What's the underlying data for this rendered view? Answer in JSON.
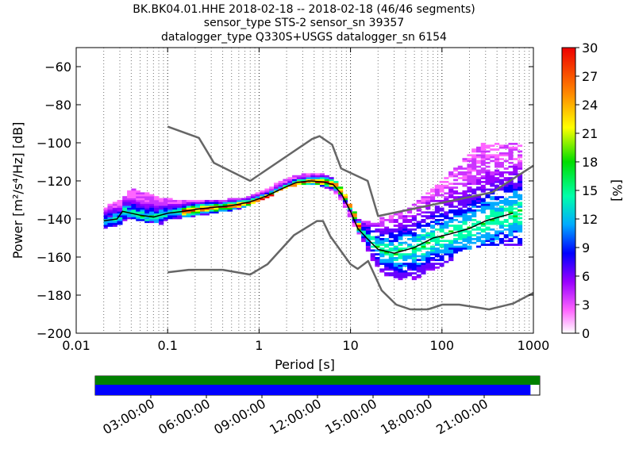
{
  "title": {
    "line1": "BK.BK04.01.HHE   2018-02-18 -- 2018-02-18  (46/46 segments)",
    "line2": "sensor_type STS-2 sensor_sn 39357",
    "line3": "datalogger_type Q330S+USGS datalogger_sn 6154"
  },
  "chart_data": {
    "type": "heatmap",
    "xlabel": "Period [s]",
    "ylabel": "Power [m²/s⁴/Hz] [dB]",
    "x_scale": "log",
    "xlim": [
      0.01,
      1000
    ],
    "ylim": [
      -200,
      -50
    ],
    "x_ticks": [
      0.01,
      0.1,
      1,
      10,
      100,
      1000
    ],
    "x_tick_labels": [
      "0.01",
      "0.1",
      "1",
      "10",
      "100",
      "1000"
    ],
    "y_ticks": [
      -200,
      -180,
      -160,
      -140,
      -120,
      -100,
      -80,
      -60
    ],
    "y_tick_labels": [
      "−200",
      "−180",
      "−160",
      "−140",
      "−120",
      "−100",
      "−80",
      "−60"
    ],
    "grid": "dotted vertical",
    "colorbar": {
      "label": "[%]",
      "range": [
        0,
        30
      ],
      "ticks": [
        0,
        3,
        6,
        9,
        12,
        15,
        18,
        21,
        24,
        27,
        30
      ],
      "tick_labels": [
        "0",
        "3",
        "6",
        "9",
        "12",
        "15",
        "18",
        "21",
        "24",
        "27",
        "30"
      ]
    },
    "noise_models": {
      "new_high_noise_model": {
        "color": "#666666",
        "points": [
          [
            0.1,
            -91.5
          ],
          [
            0.22,
            -97.4
          ],
          [
            0.32,
            -110.5
          ],
          [
            0.8,
            -120
          ],
          [
            3.8,
            -98
          ],
          [
            4.6,
            -96.5
          ],
          [
            6.3,
            -101
          ],
          [
            7.9,
            -113.5
          ],
          [
            15.4,
            -120
          ],
          [
            20,
            -138.5
          ],
          [
            354.8,
            -126
          ],
          [
            1000,
            -112
          ]
        ]
      },
      "new_low_noise_model": {
        "color": "#666666",
        "points": [
          [
            0.1,
            -168
          ],
          [
            0.17,
            -166.7
          ],
          [
            0.4,
            -166.7
          ],
          [
            0.8,
            -169.2
          ],
          [
            1.24,
            -163.7
          ],
          [
            2.4,
            -148.6
          ],
          [
            4.3,
            -141.1
          ],
          [
            5,
            -141.1
          ],
          [
            6,
            -149
          ],
          [
            10,
            -163.8
          ],
          [
            12,
            -166.2
          ],
          [
            15.6,
            -162.1
          ],
          [
            21.9,
            -177.5
          ],
          [
            31.6,
            -185
          ],
          [
            45,
            -187.5
          ],
          [
            70,
            -187.5
          ],
          [
            101,
            -185
          ],
          [
            154,
            -185
          ],
          [
            328,
            -187.5
          ],
          [
            600,
            -184.4
          ],
          [
            1000,
            -178.8
          ]
        ]
      },
      "mode": {
        "color": "#000000",
        "points": [
          [
            0.02,
            -141
          ],
          [
            0.028,
            -140
          ],
          [
            0.032,
            -136
          ],
          [
            0.04,
            -137
          ],
          [
            0.05,
            -138
          ],
          [
            0.07,
            -139
          ],
          [
            0.1,
            -137
          ],
          [
            0.15,
            -136
          ],
          [
            0.2,
            -135
          ],
          [
            0.3,
            -134
          ],
          [
            0.5,
            -133
          ],
          [
            0.8,
            -131
          ],
          [
            1.2,
            -128
          ],
          [
            1.8,
            -124
          ],
          [
            2.5,
            -121
          ],
          [
            3.5,
            -120
          ],
          [
            5,
            -120.5
          ],
          [
            6.5,
            -122
          ],
          [
            8,
            -127
          ],
          [
            10,
            -136
          ],
          [
            12,
            -145
          ],
          [
            15,
            -150
          ],
          [
            20,
            -156
          ],
          [
            30,
            -158
          ],
          [
            50,
            -155
          ],
          [
            80,
            -150
          ],
          [
            120,
            -148
          ],
          [
            200,
            -145
          ],
          [
            300,
            -141
          ],
          [
            500,
            -138
          ],
          [
            600,
            -137
          ]
        ]
      }
    },
    "histogram": {
      "period_bins": [
        0.02,
        0.022,
        0.025,
        0.028,
        0.032,
        0.036,
        0.04,
        0.045,
        0.05,
        0.056,
        0.063,
        0.071,
        0.08,
        0.09,
        0.1,
        0.113,
        0.127,
        0.143,
        0.16,
        0.18,
        0.2,
        0.226,
        0.254,
        0.285,
        0.32,
        0.36,
        0.4,
        0.45,
        0.51,
        0.57,
        0.64,
        0.72,
        0.81,
        0.91,
        1.02,
        1.15,
        1.29,
        1.45,
        1.62,
        1.82,
        2.05,
        2.3,
        2.58,
        2.9,
        3.26,
        3.66,
        4.11,
        4.62,
        5.18,
        5.82,
        6.54,
        7.34,
        8.24,
        9.25,
        10.4,
        11.7,
        13.1,
        14.7,
        16.5,
        18.5,
        20.8,
        23.4,
        26.2,
        29.5,
        33.1,
        37.1,
        41.7,
        46.8,
        52.6,
        59,
        66.3,
        74.4,
        83.5,
        93.8,
        105,
        118,
        133,
        149,
        167,
        188,
        211,
        237,
        266,
        298,
        335,
        376,
        422,
        474,
        532,
        598,
        671
      ],
      "power_low_db": [
        -145,
        -144,
        -144,
        -143,
        -141,
        -140,
        -140,
        -141,
        -141,
        -142,
        -142,
        -142,
        -143,
        -141,
        -140,
        -140,
        -140,
        -139,
        -139,
        -139,
        -138,
        -138,
        -138,
        -137,
        -137,
        -136,
        -136,
        -136,
        -135,
        -135,
        -134,
        -133,
        -132,
        -131,
        -130,
        -129,
        -128,
        -126,
        -125,
        -124,
        -123,
        -123,
        -122,
        -122,
        -122,
        -122,
        -122,
        -123,
        -124,
        -125,
        -127,
        -130,
        -134,
        -139,
        -144,
        -148,
        -152,
        -157,
        -162,
        -165,
        -168,
        -170,
        -171,
        -172,
        -173,
        -173,
        -173,
        -172,
        -171,
        -169,
        -168,
        -167,
        -166,
        -165,
        -163,
        -162,
        -160,
        -158,
        -157,
        -156,
        -155,
        -155,
        -154,
        -154,
        -154,
        -154,
        -154,
        -154,
        -154,
        -154,
        -154
      ],
      "power_high_db": [
        -134,
        -132,
        -131,
        -130,
        -128,
        -125,
        -124,
        -125,
        -126,
        -126,
        -127,
        -128,
        -129,
        -129,
        -129,
        -130,
        -130,
        -130,
        -130,
        -130,
        -130,
        -130,
        -130,
        -130,
        -130,
        -130,
        -130,
        -129,
        -129,
        -129,
        -129,
        -128,
        -127,
        -126,
        -125,
        -124,
        -123,
        -121,
        -120,
        -119,
        -118,
        -117,
        -117,
        -116,
        -116,
        -116,
        -116,
        -116,
        -117,
        -118,
        -120,
        -123,
        -127,
        -132,
        -136,
        -140,
        -141,
        -141,
        -141,
        -141,
        -139,
        -139,
        -138,
        -137,
        -136,
        -135,
        -134,
        -132,
        -130,
        -128,
        -126,
        -124,
        -122,
        -120,
        -118,
        -115,
        -113,
        -111,
        -108,
        -105,
        -103,
        -101,
        -100,
        -100,
        -100,
        -100,
        -100,
        -100,
        -100,
        -100,
        -100
      ]
    },
    "time_axis": {
      "labels": [
        "03:00:00",
        "06:00:00",
        "09:00:00",
        "12:00:00",
        "15:00:00",
        "18:00:00",
        "21:00:00"
      ],
      "hours": [
        3,
        6,
        9,
        12,
        15,
        18,
        21
      ],
      "range_hours": [
        0,
        24
      ],
      "available_data": {
        "color": "#008000",
        "start_hour": 0,
        "end_hour": 24
      },
      "processed_segments": {
        "color": "#0000ff",
        "start_hour": 0,
        "end_hour": 23.5
      }
    }
  }
}
